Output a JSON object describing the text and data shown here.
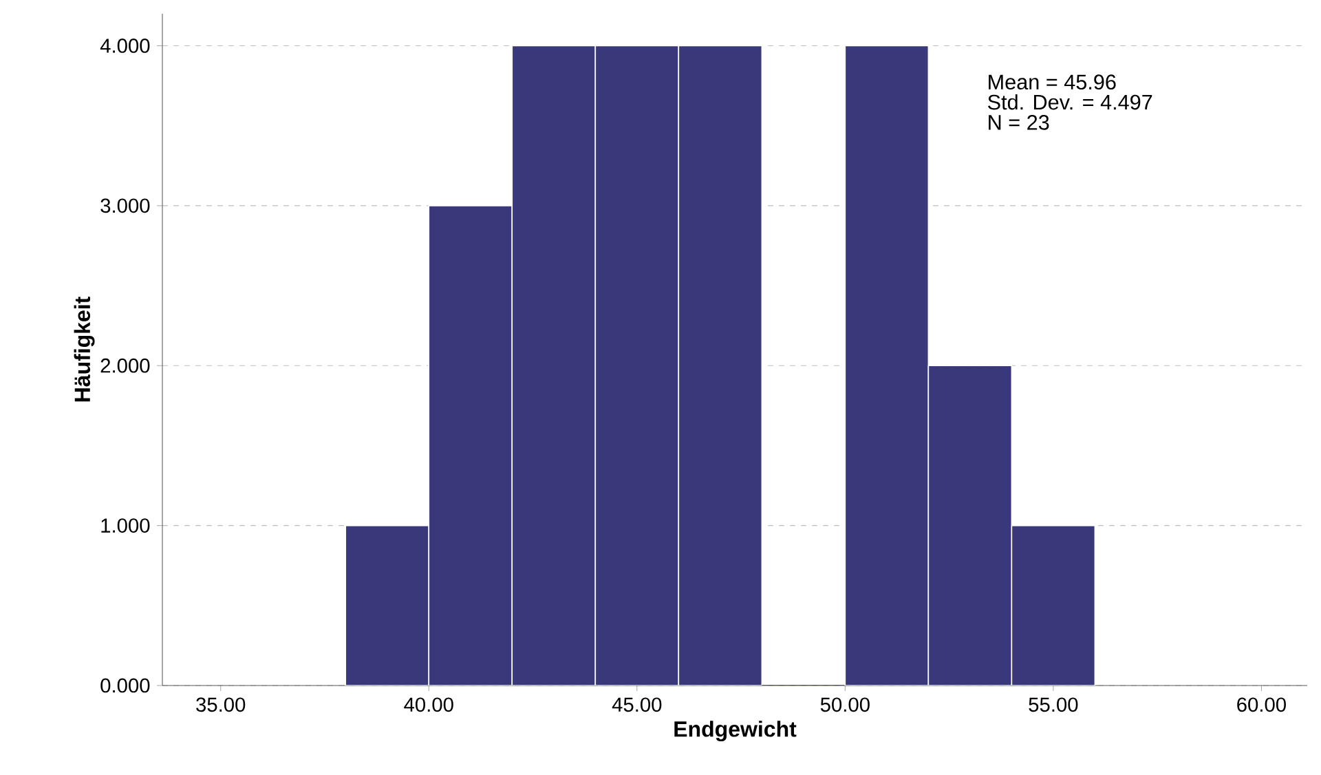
{
  "chart_data": {
    "type": "histogram",
    "xlabel": "Endgewicht",
    "ylabel": "Häufigkeit",
    "bins": [
      38,
      40,
      42,
      44,
      46,
      48,
      50,
      52,
      54,
      56
    ],
    "values": [
      1,
      3,
      4,
      4,
      4,
      0,
      4,
      2,
      1
    ],
    "color": "#38387a",
    "xlim": [
      33.6,
      61.1
    ],
    "ylim": [
      0,
      4.2
    ],
    "xticks": [
      {
        "value": 35,
        "label": "35.00"
      },
      {
        "value": 40,
        "label": "40.00"
      },
      {
        "value": 45,
        "label": "45.00"
      },
      {
        "value": 50,
        "label": "50.00"
      },
      {
        "value": 55,
        "label": "55.00"
      },
      {
        "value": 60,
        "label": "60.00"
      }
    ],
    "yticks": [
      {
        "value": 0,
        "label": "0.000"
      },
      {
        "value": 1,
        "label": "1.000"
      },
      {
        "value": 2,
        "label": "2.000"
      },
      {
        "value": 3,
        "label": "3.000"
      },
      {
        "value": 4,
        "label": "4.000"
      }
    ],
    "grid": "y",
    "annotations": [
      "Mean = 45.96",
      "Std. Dev. = 4.497",
      "N = 23"
    ]
  }
}
